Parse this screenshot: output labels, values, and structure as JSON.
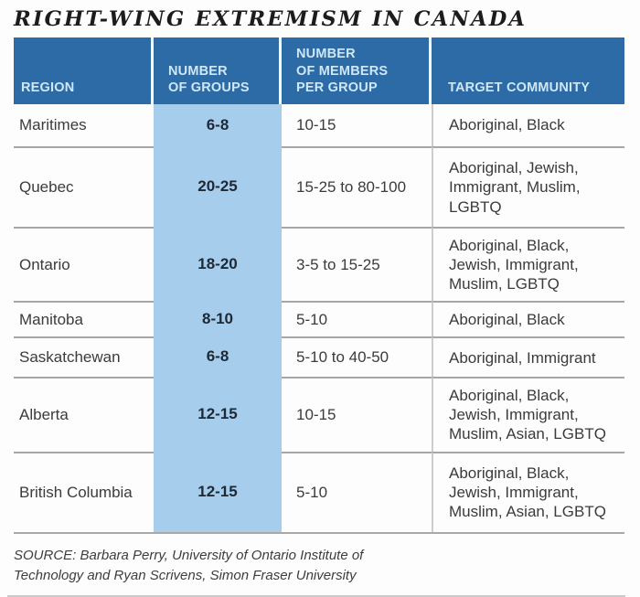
{
  "title": "RIGHT-WING EXTREMISM IN CANADA",
  "colors": {
    "header_bg": "#2c6ba5",
    "header_text": "#cfe7f7",
    "highlight_column": "#a6cdec",
    "row_divider": "#a6a6a6",
    "title_text": "#1c1c1c"
  },
  "header": {
    "col_region": "REGION",
    "col_groups": "NUMBER\nOF GROUPS",
    "col_members": "NUMBER\nOF MEMBERS\nPER GROUP",
    "col_targets": "TARGET COMMUNITY"
  },
  "rows": [
    {
      "region": "Maritimes",
      "groups": "6-8",
      "members": "10-15",
      "targets": "Aboriginal, Black"
    },
    {
      "region": "Quebec",
      "groups": "20-25",
      "members": "15-25 to 80-100",
      "targets": "Aboriginal, Jewish, Immigrant, Muslim, LGBTQ"
    },
    {
      "region": "Ontario",
      "groups": "18-20",
      "members": "3-5 to 15-25",
      "targets": "Aboriginal, Black, Jewish, Immigrant, Muslim, LGBTQ"
    },
    {
      "region": "Manitoba",
      "groups": "8-10",
      "members": "5-10",
      "targets": "Aboriginal, Black"
    },
    {
      "region": "Saskatchewan",
      "groups": "6-8",
      "members": "5-10 to 40-50",
      "targets": "Aboriginal, Immigrant"
    },
    {
      "region": "Alberta",
      "groups": "12-15",
      "members": "10-15",
      "targets": "Aboriginal, Black, Jewish, Immigrant, Muslim, Asian, LGBTQ"
    },
    {
      "region": "British Columbia",
      "groups": "12-15",
      "members": "5-10",
      "targets": "Aboriginal, Black, Jewish, Immigrant, Muslim, Asian, LGBTQ"
    }
  ],
  "source": "SOURCE: Barbara Perry, University of Ontario Institute of Technology and Ryan Scrivens, Simon Fraser University",
  "chart_data": {
    "type": "table",
    "title": "RIGHT-WING EXTREMISM IN CANADA",
    "columns": [
      "REGION",
      "NUMBER OF GROUPS",
      "NUMBER OF MEMBERS PER GROUP",
      "TARGET COMMUNITY"
    ],
    "rows": [
      [
        "Maritimes",
        "6-8",
        "10-15",
        "Aboriginal, Black"
      ],
      [
        "Quebec",
        "20-25",
        "15-25 to 80-100",
        "Aboriginal, Jewish, Immigrant, Muslim, LGBTQ"
      ],
      [
        "Ontario",
        "18-20",
        "3-5 to 15-25",
        "Aboriginal, Black, Jewish, Immigrant, Muslim, LGBTQ"
      ],
      [
        "Manitoba",
        "8-10",
        "5-10",
        "Aboriginal, Black"
      ],
      [
        "Saskatchewan",
        "6-8",
        "5-10 to 40-50",
        "Aboriginal, Immigrant"
      ],
      [
        "Alberta",
        "12-15",
        "10-15",
        "Aboriginal, Black, Jewish, Immigrant, Muslim, Asian, LGBTQ"
      ],
      [
        "British Columbia",
        "12-15",
        "5-10",
        "Aboriginal, Black, Jewish, Immigrant, Muslim, Asian, LGBTQ"
      ]
    ],
    "source": "SOURCE: Barbara Perry, University of Ontario Institute of Technology and Ryan Scrivens, Simon Fraser University",
    "layout": {
      "highlighted_column": "NUMBER OF GROUPS",
      "grid": "horizontal dividers between rows, header in dark blue"
    }
  }
}
